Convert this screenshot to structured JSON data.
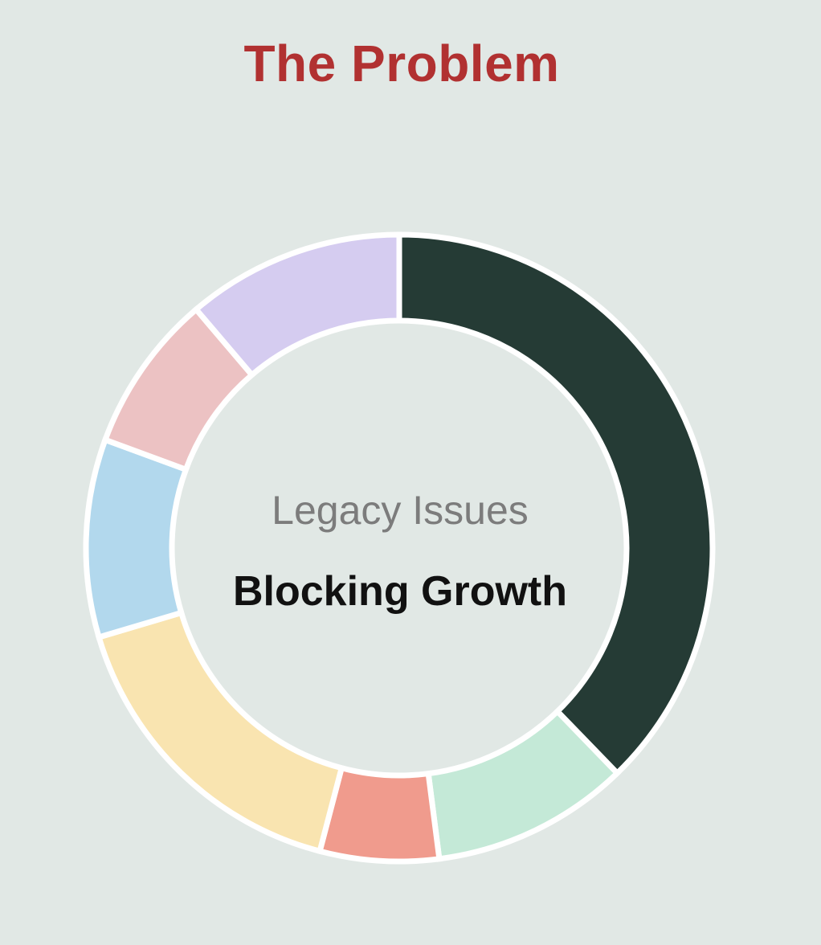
{
  "header": {
    "title": "The Problem"
  },
  "chart_data": {
    "type": "pie",
    "donut": true,
    "title": "The Problem",
    "center_text": {
      "subtitle": "Legacy Issues",
      "main": "Blocking Growth"
    },
    "start_angle": "top",
    "direction": "clockwise",
    "slices": [
      {
        "value": 37,
        "color": "#253b35"
      },
      {
        "value": 10,
        "color": "#c4e9d7"
      },
      {
        "value": 6,
        "color": "#f09b8d"
      },
      {
        "value": 16,
        "color": "#f9e4b0"
      },
      {
        "value": 10,
        "color": "#b2d8ed"
      },
      {
        "value": 8,
        "color": "#ecc2c3"
      },
      {
        "value": 11,
        "color": "#d5ccf0"
      }
    ]
  }
}
